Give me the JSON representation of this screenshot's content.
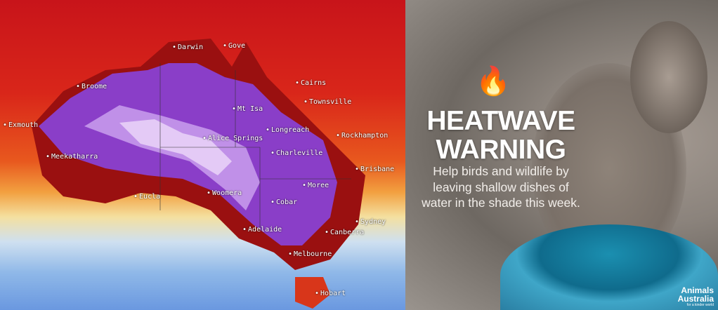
{
  "map": {
    "cities": [
      "Darwin",
      "Gove",
      "Broome",
      "Cairns",
      "Townsville",
      "Mt Isa",
      "Exmouth",
      "Longreach",
      "Rockhampton",
      "Alice Springs",
      "Charleville",
      "Meekatharra",
      "Brisbane",
      "Moree",
      "Eucla",
      "Woomera",
      "Cobar",
      "Sydney",
      "Adelaide",
      "Canberra",
      "Melbourne",
      "Hobart"
    ],
    "colors": {
      "hot_red": "#d01818",
      "extreme_purple": "#8a3ec8",
      "peak_lilac": "#d8b8f0",
      "cool_blue": "#7aa4e4"
    }
  },
  "poster": {
    "icon": "fire-emoji",
    "flame": "🔥",
    "title_line1": "HEATWAVE",
    "title_line2": "WARNING",
    "body": "Help birds and wildlife by leaving shallow dishes of water in the shade this week.",
    "logo_line1": "Animals",
    "logo_line2": "Australia",
    "logo_tagline": "for a kinder world"
  }
}
